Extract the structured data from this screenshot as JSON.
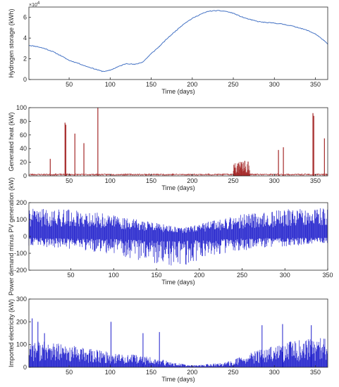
{
  "chart_data": [
    {
      "type": "line",
      "xlabel": "Time (days)",
      "ylabel": "Hydrogen storage (kWh)",
      "y_multiplier": "×10",
      "y_multiplier_exp": "4",
      "xlim": [
        1,
        365
      ],
      "ylim": [
        0,
        70000
      ],
      "xticks": [
        50,
        100,
        150,
        200,
        250,
        300,
        350
      ],
      "yticks": [
        0,
        20000,
        40000,
        60000
      ],
      "ytick_labels": [
        "0",
        "2",
        "4",
        "6"
      ],
      "grid": false,
      "series": [
        {
          "color": "#4472c4",
          "x": [
            1,
            10,
            20,
            30,
            40,
            50,
            60,
            70,
            80,
            90,
            95,
            100,
            110,
            120,
            130,
            140,
            150,
            160,
            170,
            180,
            190,
            200,
            210,
            220,
            230,
            240,
            250,
            260,
            270,
            280,
            290,
            300,
            310,
            320,
            330,
            340,
            350,
            360,
            365
          ],
          "y": [
            33000,
            32000,
            30000,
            27000,
            23000,
            18500,
            16000,
            13000,
            10500,
            8000,
            8000,
            9000,
            12500,
            15500,
            14500,
            17000,
            25000,
            32000,
            40000,
            47000,
            54000,
            59000,
            63000,
            66000,
            66500,
            66000,
            64000,
            60500,
            58000,
            56000,
            55000,
            54500,
            53500,
            52000,
            50000,
            47500,
            44000,
            38000,
            34000
          ]
        }
      ]
    },
    {
      "type": "line",
      "xlabel": "Time (days)",
      "ylabel": "Generated heat (kW)",
      "xlim": [
        1,
        365
      ],
      "ylim": [
        0,
        100
      ],
      "xticks": [
        50,
        100,
        150,
        200,
        250,
        300,
        350
      ],
      "yticks": [
        0,
        20,
        40,
        60,
        80,
        100
      ],
      "grid": false,
      "baseline": 2,
      "spikes": [
        {
          "x": 27,
          "y": 25
        },
        {
          "x": 45,
          "y": 78
        },
        {
          "x": 46,
          "y": 75
        },
        {
          "x": 57,
          "y": 62
        },
        {
          "x": 68,
          "y": 48
        },
        {
          "x": 85,
          "y": 100
        },
        {
          "x": 252,
          "y": 12
        },
        {
          "x": 256,
          "y": 18
        },
        {
          "x": 260,
          "y": 20
        },
        {
          "x": 264,
          "y": 22
        },
        {
          "x": 268,
          "y": 21
        },
        {
          "x": 305,
          "y": 38
        },
        {
          "x": 311,
          "y": 42
        },
        {
          "x": 347,
          "y": 92
        },
        {
          "x": 348,
          "y": 88
        },
        {
          "x": 361,
          "y": 55
        }
      ],
      "series": [
        {
          "color": "#a52a2a"
        }
      ]
    },
    {
      "type": "line",
      "xlabel": "Time (days)",
      "ylabel": "Power demand minus PV generation (kW)",
      "xlim": [
        1,
        350
      ],
      "ylim": [
        -200,
        200
      ],
      "xticks": [
        50,
        100,
        150,
        200,
        250,
        300,
        350
      ],
      "yticks": [
        -200,
        -100,
        0,
        100,
        200
      ],
      "grid": false,
      "envelope": [
        {
          "x": 1,
          "max": 165,
          "min": -55
        },
        {
          "x": 50,
          "max": 160,
          "min": -75
        },
        {
          "x": 100,
          "max": 130,
          "min": -105
        },
        {
          "x": 150,
          "max": 80,
          "min": -165
        },
        {
          "x": 180,
          "max": 50,
          "min": -190
        },
        {
          "x": 200,
          "max": 75,
          "min": -140
        },
        {
          "x": 250,
          "max": 130,
          "min": -85
        },
        {
          "x": 300,
          "max": 160,
          "min": -60
        },
        {
          "x": 350,
          "max": 170,
          "min": -40
        }
      ],
      "series": [
        {
          "color": "#1f1fcc"
        }
      ]
    },
    {
      "type": "line",
      "xlabel": "Time (days)",
      "ylabel": "Imported electricity (kW)",
      "xlim": [
        1,
        365
      ],
      "ylim": [
        0,
        300
      ],
      "xticks": [
        50,
        100,
        150,
        200,
        250,
        300,
        350
      ],
      "yticks": [
        0,
        100,
        200,
        300
      ],
      "grid": false,
      "envelope": [
        {
          "x": 1,
          "max": 110
        },
        {
          "x": 50,
          "max": 85
        },
        {
          "x": 100,
          "max": 60
        },
        {
          "x": 150,
          "max": 40
        },
        {
          "x": 175,
          "max": 20
        },
        {
          "x": 200,
          "max": 8
        },
        {
          "x": 240,
          "max": 18
        },
        {
          "x": 275,
          "max": 60
        },
        {
          "x": 320,
          "max": 100
        },
        {
          "x": 365,
          "max": 115
        }
      ],
      "spikes": [
        {
          "x": 5,
          "y": 215
        },
        {
          "x": 12,
          "y": 200
        },
        {
          "x": 20,
          "y": 150
        },
        {
          "x": 101,
          "y": 200
        },
        {
          "x": 140,
          "y": 150
        },
        {
          "x": 160,
          "y": 155
        },
        {
          "x": 285,
          "y": 185
        },
        {
          "x": 310,
          "y": 190
        },
        {
          "x": 345,
          "y": 185
        }
      ],
      "series": [
        {
          "color": "#1f1fcc"
        }
      ]
    }
  ]
}
